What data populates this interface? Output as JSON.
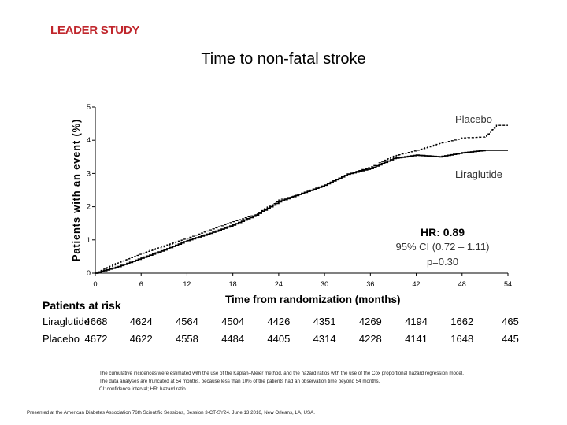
{
  "brand": "LEADER STUDY",
  "slide_title": "Time to non-fatal stroke",
  "chart_data": {
    "type": "line",
    "ylabel": "Patients with an event (%)",
    "xlabel": "Time from randomization (months)",
    "xlim": [
      0,
      54
    ],
    "ylim": [
      0,
      5
    ],
    "x_ticks": [
      0,
      6,
      12,
      18,
      24,
      30,
      36,
      42,
      48,
      54
    ],
    "y_ticks": [
      0,
      1,
      2,
      3,
      4,
      5
    ],
    "grid": false,
    "series": [
      {
        "name": "Placebo",
        "style": "dashed",
        "x": [
          0,
          3,
          6,
          9,
          12,
          15,
          18,
          21,
          24,
          27,
          30,
          33,
          36,
          39,
          42,
          45,
          48,
          51,
          52.5,
          54
        ],
        "y": [
          0,
          0.33,
          0.6,
          0.82,
          1.05,
          1.3,
          1.55,
          1.78,
          2.2,
          2.4,
          2.65,
          2.98,
          3.2,
          3.52,
          3.7,
          3.9,
          4.07,
          4.1,
          4.45,
          4.45
        ]
      },
      {
        "name": "Liraglutide",
        "style": "solid",
        "x": [
          0,
          3,
          6,
          9,
          12,
          15,
          18,
          21,
          24,
          27,
          30,
          33,
          36,
          39,
          42,
          45,
          48,
          51,
          52.5,
          54
        ],
        "y": [
          0,
          0.2,
          0.45,
          0.7,
          0.98,
          1.2,
          1.45,
          1.75,
          2.15,
          2.4,
          2.65,
          2.98,
          3.15,
          3.45,
          3.55,
          3.5,
          3.62,
          3.7,
          3.7,
          3.7
        ]
      }
    ],
    "annotations": {
      "hr": "HR: 0.89",
      "ci": "95% CI (0.72 – 1.11)",
      "p": "p=0.30"
    }
  },
  "risk_table": {
    "header": "Patients at risk",
    "rows": [
      {
        "label": "Liraglutide",
        "values": [
          "4668",
          "4624",
          "4564",
          "4504",
          "4426",
          "4351",
          "4269",
          "4194",
          "1662",
          "465"
        ]
      },
      {
        "label": "Placebo",
        "values": [
          "4672",
          "4622",
          "4558",
          "4484",
          "4405",
          "4314",
          "4228",
          "4141",
          "1648",
          "445"
        ]
      }
    ]
  },
  "footnote": [
    "The cumulative incidences were estimated with the use of the Kaplan–Meier method, and the hazard ratios with the use of the Cox proportional hazard regression model.",
    "The data analyses are truncated at 54 months, because less than 10% of the patients had an observation time beyond 54 months.",
    "CI: confidence interval; HR: hazard ratio."
  ],
  "presented": "Presented at the American Diabetes Association 76th Scientific Sessions, Session 3-CT-SY24. June 13 2016, New Orleans, LA, USA."
}
